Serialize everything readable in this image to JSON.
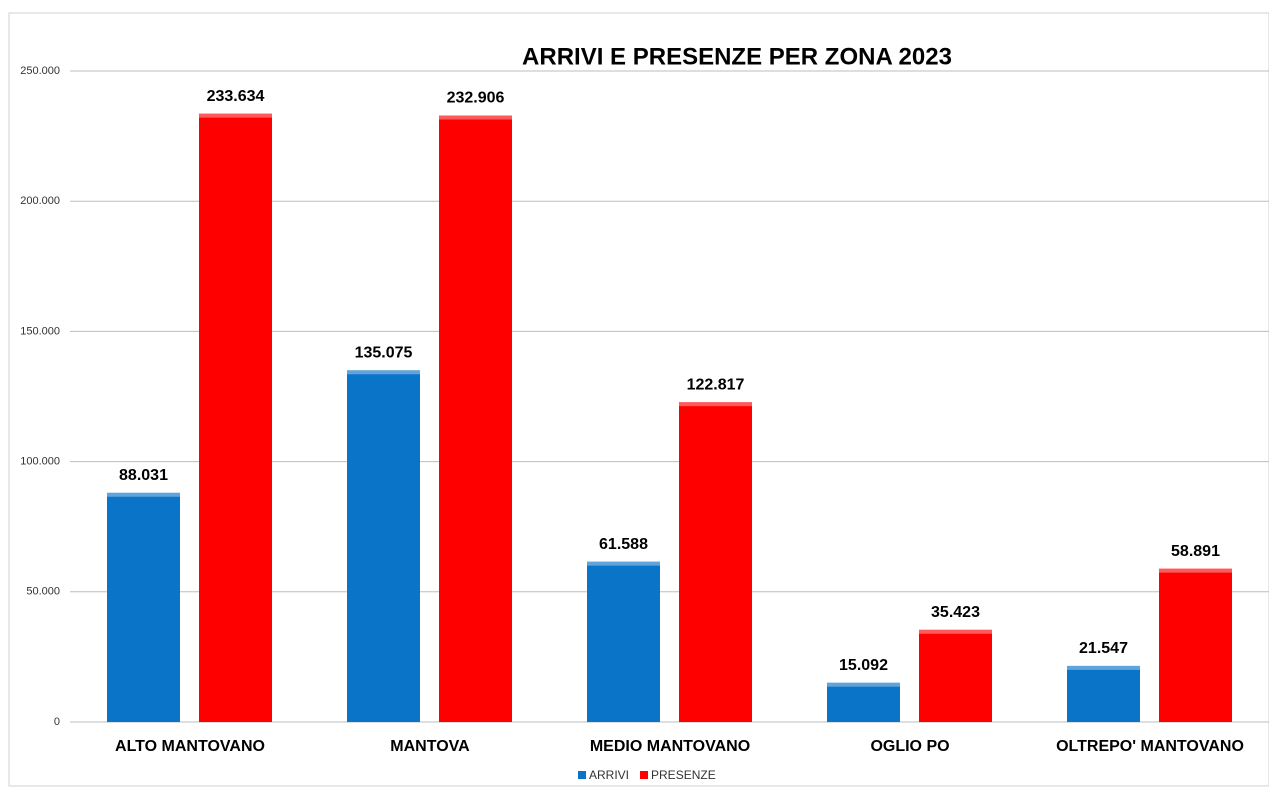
{
  "chart_data": {
    "type": "bar",
    "title": "ARRIVI E PRESENZE PER ZONA 2023",
    "categories": [
      "ALTO MANTOVANO",
      "MANTOVA",
      "MEDIO MANTOVANO",
      "OGLIO PO",
      "OLTREPO' MANTOVANO"
    ],
    "series": [
      {
        "name": "ARRIVI",
        "color": "#0a74c9",
        "values": [
          88031,
          135075,
          61588,
          15092,
          21547
        ],
        "value_labels": [
          "88.031",
          "135.075",
          "61.588",
          "15.092",
          "21.547"
        ]
      },
      {
        "name": "PRESENZE",
        "color": "#ff0000",
        "values": [
          233634,
          232906,
          122817,
          35423,
          58891
        ],
        "value_labels": [
          "233.634",
          "232.906",
          "122.817",
          "35.423",
          "58.891"
        ]
      }
    ],
    "ylim": [
      0,
      250000
    ],
    "yticks": [
      0,
      {
        "value": 50000,
        "label": "50.000"
      },
      {
        "value": 100000,
        "label": "100.000"
      },
      {
        "value": 150000,
        "label": "150.000"
      },
      {
        "value": 200000,
        "label": "200.000"
      },
      {
        "value": 250000,
        "label": "250.000"
      }
    ],
    "grid": true,
    "legend": "bottom"
  }
}
